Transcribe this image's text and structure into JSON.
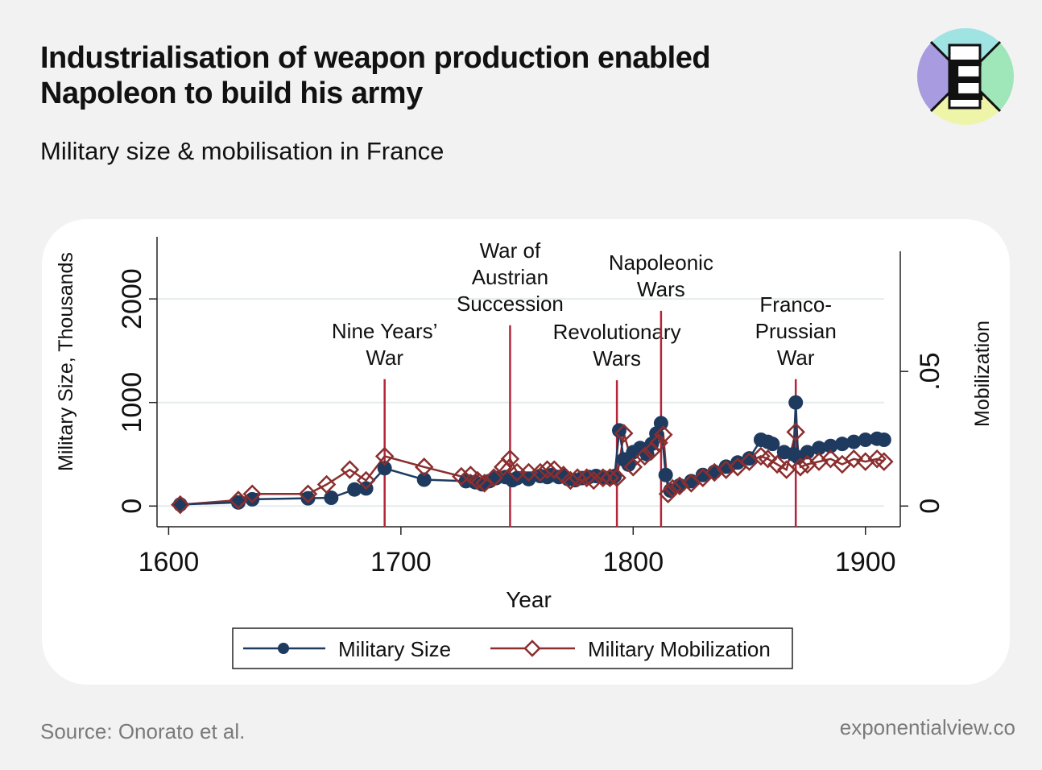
{
  "header": {
    "title": "Industrialisation of weapon production enabled Napoleon to build his army",
    "subtitle": "Military size & mobilisation in France"
  },
  "footer": {
    "source": "Source: Onorato et al.",
    "site": "exponentialview.co"
  },
  "logo": {
    "letter": "E",
    "icon": "exponential-view-logo-icon"
  },
  "colors": {
    "background": "#f2f2f2",
    "card": "#ffffff",
    "military_size": "#1f3a5f",
    "military_mobilization": "#8b2e2e",
    "war_line": "#b3263a",
    "logo_purple": "#a89be0",
    "logo_cyan": "#9fe3e3",
    "logo_green": "#9fe6b8",
    "logo_yellow": "#eef5a8"
  },
  "chart_data": {
    "type": "line",
    "xlabel": "Year",
    "ylabel_left": "Military Size, Thousands",
    "ylabel_right": "Mobilization",
    "xlim": [
      1595,
      1915
    ],
    "ylim_left": [
      -200,
      2600
    ],
    "ylim_right": [
      -0.00769,
      0.1
    ],
    "x_ticks": [
      1600,
      1700,
      1800,
      1900
    ],
    "x_tick_labels": [
      "1600",
      "1700",
      "1800",
      "1900"
    ],
    "y_left_ticks": [
      0,
      1000,
      2000
    ],
    "y_left_tick_labels": [
      "0",
      "1000",
      "2000"
    ],
    "y_right_ticks": [
      0,
      0.05
    ],
    "y_right_tick_labels": [
      "0",
      ".05"
    ],
    "grid": true,
    "legend_position": "bottom",
    "series": [
      {
        "name": "Military Size",
        "marker": "circle",
        "x": [
          1605,
          1630,
          1636,
          1660,
          1670,
          1680,
          1685,
          1693,
          1710,
          1728,
          1732,
          1735,
          1738,
          1741,
          1745,
          1748,
          1750,
          1755,
          1760,
          1763,
          1765,
          1768,
          1770,
          1772,
          1775,
          1778,
          1781,
          1784,
          1787,
          1790,
          1792,
          1794,
          1796,
          1798,
          1800,
          1803,
          1806,
          1808,
          1810,
          1812,
          1814,
          1816,
          1820,
          1825,
          1830,
          1835,
          1840,
          1845,
          1850,
          1855,
          1858,
          1860,
          1865,
          1869,
          1870,
          1871,
          1875,
          1880,
          1885,
          1890,
          1895,
          1900,
          1905,
          1908
        ],
        "values": [
          15,
          35,
          65,
          75,
          80,
          160,
          170,
          365,
          255,
          240,
          230,
          210,
          240,
          270,
          280,
          250,
          270,
          260,
          290,
          280,
          300,
          280,
          290,
          260,
          250,
          270,
          280,
          290,
          280,
          270,
          290,
          730,
          450,
          400,
          520,
          560,
          500,
          600,
          700,
          800,
          300,
          150,
          200,
          240,
          300,
          330,
          380,
          420,
          460,
          640,
          620,
          600,
          520,
          500,
          1000,
          470,
          520,
          560,
          580,
          600,
          620,
          640,
          650,
          640
        ]
      },
      {
        "name": "Military Mobilization",
        "marker": "diamond",
        "x": [
          1605,
          1630,
          1636,
          1660,
          1668,
          1678,
          1685,
          1693,
          1710,
          1726,
          1730,
          1733,
          1736,
          1740,
          1744,
          1747,
          1750,
          1755,
          1760,
          1763,
          1766,
          1770,
          1773,
          1776,
          1780,
          1783,
          1787,
          1790,
          1793,
          1796,
          1800,
          1805,
          1808,
          1811,
          1813,
          1815,
          1817,
          1820,
          1825,
          1830,
          1835,
          1840,
          1845,
          1850,
          1855,
          1858,
          1862,
          1866,
          1870,
          1872,
          1875,
          1880,
          1885,
          1890,
          1895,
          1900,
          1905,
          1908
        ],
        "values": [
          0.0005,
          0.0022,
          0.0045,
          0.0045,
          0.008,
          0.0135,
          0.0095,
          0.0185,
          0.0145,
          0.011,
          0.0115,
          0.0095,
          0.0085,
          0.0105,
          0.0145,
          0.0175,
          0.0125,
          0.0125,
          0.0125,
          0.0135,
          0.0135,
          0.0115,
          0.0095,
          0.0105,
          0.0105,
          0.0095,
          0.0105,
          0.0105,
          0.0105,
          0.027,
          0.0145,
          0.0185,
          0.0205,
          0.0235,
          0.0265,
          0.0045,
          0.0065,
          0.0075,
          0.0085,
          0.0105,
          0.0125,
          0.0135,
          0.0145,
          0.0165,
          0.0185,
          0.0175,
          0.0155,
          0.0135,
          0.0275,
          0.0145,
          0.0155,
          0.0165,
          0.0175,
          0.0155,
          0.0175,
          0.0165,
          0.0175,
          0.0165
        ]
      }
    ],
    "annotations": [
      {
        "year": 1693,
        "lines": [
          "Nine Years’",
          "War"
        ],
        "line_top": 1225
      },
      {
        "year": 1747,
        "lines": [
          "War of",
          "Austrian",
          "Succession"
        ],
        "line_top": 1745
      },
      {
        "year": 1793,
        "lines": [
          "Revolutionary",
          "Wars"
        ],
        "line_top": 1215
      },
      {
        "year": 1812,
        "lines": [
          "Napoleonic",
          "Wars"
        ],
        "line_top": 1885
      },
      {
        "year": 1870,
        "lines": [
          "Franco-",
          "Prussian",
          "War"
        ],
        "line_top": 1225
      }
    ]
  }
}
